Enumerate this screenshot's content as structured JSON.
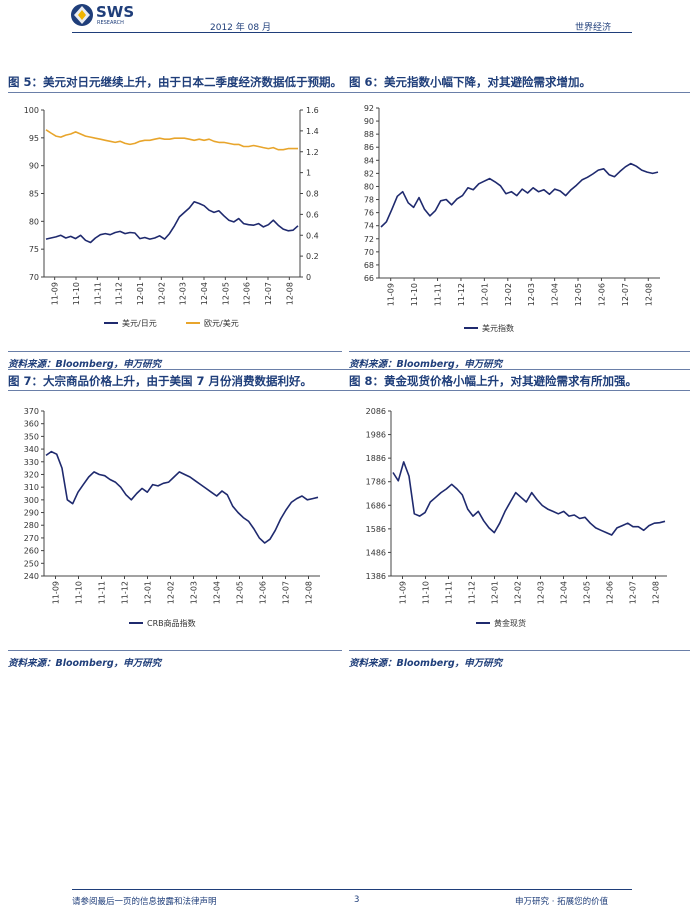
{
  "header": {
    "logo_text": "SWS",
    "logo_sub": "RESEARCH",
    "date": "2012 年 08 月",
    "section": "世界经济"
  },
  "figures": [
    {
      "title": "图 5：美元对日元继续上升，由于日本二季度经济数据低于预期。",
      "source": "资料来源：Bloomberg，申万研究"
    },
    {
      "title": "图 6：美元指数小幅下降，对其避险需求增加。",
      "source": "资料来源：Bloomberg，申万研究"
    },
    {
      "title": "图 7：大宗商品价格上升，由于美国 7 月份消费数据利好。",
      "source": "资料来源：Bloomberg，申万研究"
    },
    {
      "title": "图 8：黄金现货价格小幅上升，对其避险需求有所加强。",
      "source": "资料来源：Bloomberg，申万研究"
    }
  ],
  "footer": {
    "disclaimer": "请参阅最后一页的信息披露和法律声明",
    "page": "3",
    "slogan": "申万研究 · 拓展您的价值"
  },
  "chart_data": [
    {
      "type": "line",
      "x_ticks": [
        "11-09",
        "11-10",
        "11-11",
        "11-12",
        "12-01",
        "12-02",
        "12-03",
        "12-04",
        "12-05",
        "12-06",
        "12-07",
        "12-08"
      ],
      "ylim": [
        70,
        100
      ],
      "y_ticks": [
        70,
        75,
        80,
        85,
        90,
        95,
        100
      ],
      "y2lim": [
        0,
        1.6
      ],
      "y2_ticks": [
        "0",
        "0.2",
        "0.4",
        "0.6",
        "0.8",
        "1",
        "1.2",
        "1.4",
        "1.6"
      ],
      "legend_position": "bottom",
      "series": [
        {
          "name": "美元/日元",
          "axis": "left",
          "color": "#1f2a6e",
          "values": [
            76.8,
            77.0,
            77.2,
            77.5,
            77.0,
            77.3,
            76.9,
            77.5,
            76.6,
            76.2,
            77.0,
            77.6,
            77.8,
            77.6,
            78.0,
            78.2,
            77.8,
            78.0,
            77.9,
            76.9,
            77.1,
            76.8,
            77.0,
            77.4,
            76.8,
            77.8,
            79.2,
            80.8,
            81.6,
            82.4,
            83.5,
            83.2,
            82.8,
            82.0,
            81.6,
            81.9,
            81.0,
            80.2,
            79.9,
            80.5,
            79.6,
            79.4,
            79.3,
            79.6,
            79.0,
            79.4,
            80.2,
            79.3,
            78.6,
            78.3,
            78.4,
            79.2
          ]
        },
        {
          "name": "欧元/美元",
          "axis": "right",
          "color": "#e8a52c",
          "values": [
            1.41,
            1.38,
            1.35,
            1.34,
            1.36,
            1.37,
            1.39,
            1.37,
            1.35,
            1.34,
            1.33,
            1.32,
            1.31,
            1.3,
            1.29,
            1.3,
            1.28,
            1.27,
            1.28,
            1.3,
            1.31,
            1.31,
            1.32,
            1.33,
            1.32,
            1.32,
            1.33,
            1.33,
            1.33,
            1.32,
            1.31,
            1.32,
            1.31,
            1.32,
            1.3,
            1.29,
            1.29,
            1.28,
            1.27,
            1.27,
            1.25,
            1.25,
            1.26,
            1.25,
            1.24,
            1.23,
            1.24,
            1.22,
            1.22,
            1.23,
            1.23,
            1.23
          ]
        }
      ]
    },
    {
      "type": "line",
      "x_ticks": [
        "11-09",
        "11-10",
        "11-11",
        "11-12",
        "12-01",
        "12-02",
        "12-03",
        "12-04",
        "12-05",
        "12-06",
        "12-07",
        "12-08"
      ],
      "ylim": [
        66,
        92
      ],
      "y_ticks": [
        66,
        68,
        70,
        72,
        74,
        76,
        78,
        80,
        82,
        84,
        86,
        88,
        90,
        92
      ],
      "legend_position": "bottom",
      "series": [
        {
          "name": "美元指数",
          "color": "#1f2a6e",
          "values": [
            73.8,
            74.6,
            76.5,
            78.5,
            79.2,
            77.5,
            76.8,
            78.3,
            76.5,
            75.5,
            76.3,
            77.8,
            78.0,
            77.2,
            78.1,
            78.6,
            79.8,
            79.5,
            80.4,
            80.8,
            81.2,
            80.7,
            80.1,
            78.9,
            79.2,
            78.6,
            79.6,
            79.0,
            79.8,
            79.2,
            79.5,
            78.8,
            79.6,
            79.3,
            78.6,
            79.5,
            80.2,
            81.0,
            81.4,
            81.9,
            82.5,
            82.7,
            81.8,
            81.5,
            82.3,
            83.0,
            83.5,
            83.1,
            82.5,
            82.2,
            82.0,
            82.2
          ]
        }
      ]
    },
    {
      "type": "line",
      "x_ticks": [
        "11-09",
        "11-10",
        "11-11",
        "11-12",
        "12-01",
        "12-02",
        "12-03",
        "12-04",
        "12-05",
        "12-06",
        "12-07",
        "12-08"
      ],
      "ylim": [
        240,
        370
      ],
      "y_ticks": [
        240,
        250,
        260,
        270,
        280,
        290,
        300,
        310,
        320,
        330,
        340,
        350,
        360,
        370
      ],
      "legend_position": "bottom",
      "series": [
        {
          "name": "CRB商品指数",
          "color": "#1f2a6e",
          "values": [
            335,
            338,
            336,
            325,
            300,
            297,
            306,
            312,
            318,
            322,
            320,
            319,
            316,
            314,
            310,
            304,
            300,
            305,
            309,
            306,
            312,
            311,
            313,
            314,
            318,
            322,
            320,
            318,
            315,
            312,
            309,
            306,
            303,
            307,
            304,
            295,
            290,
            286,
            283,
            277,
            270,
            266,
            269,
            276,
            285,
            292,
            298,
            301,
            303,
            300,
            301,
            302
          ]
        }
      ]
    },
    {
      "type": "line",
      "x_ticks": [
        "11-09",
        "11-10",
        "11-11",
        "11-12",
        "12-01",
        "12-02",
        "12-03",
        "12-04",
        "12-05",
        "12-06",
        "12-07",
        "12-08"
      ],
      "ylim": [
        1386,
        2086
      ],
      "y_ticks": [
        1386,
        1486,
        1586,
        1686,
        1786,
        1886,
        1986,
        2086
      ],
      "legend_position": "bottom",
      "series": [
        {
          "name": "黄金现货",
          "color": "#1f2a6e",
          "values": [
            1825,
            1790,
            1870,
            1810,
            1650,
            1640,
            1655,
            1700,
            1720,
            1740,
            1755,
            1775,
            1755,
            1730,
            1670,
            1640,
            1660,
            1620,
            1590,
            1570,
            1610,
            1660,
            1700,
            1740,
            1720,
            1700,
            1740,
            1710,
            1685,
            1670,
            1660,
            1650,
            1660,
            1640,
            1645,
            1630,
            1635,
            1610,
            1590,
            1580,
            1570,
            1560,
            1590,
            1600,
            1610,
            1595,
            1595,
            1580,
            1600,
            1610,
            1612,
            1618
          ]
        }
      ]
    }
  ]
}
